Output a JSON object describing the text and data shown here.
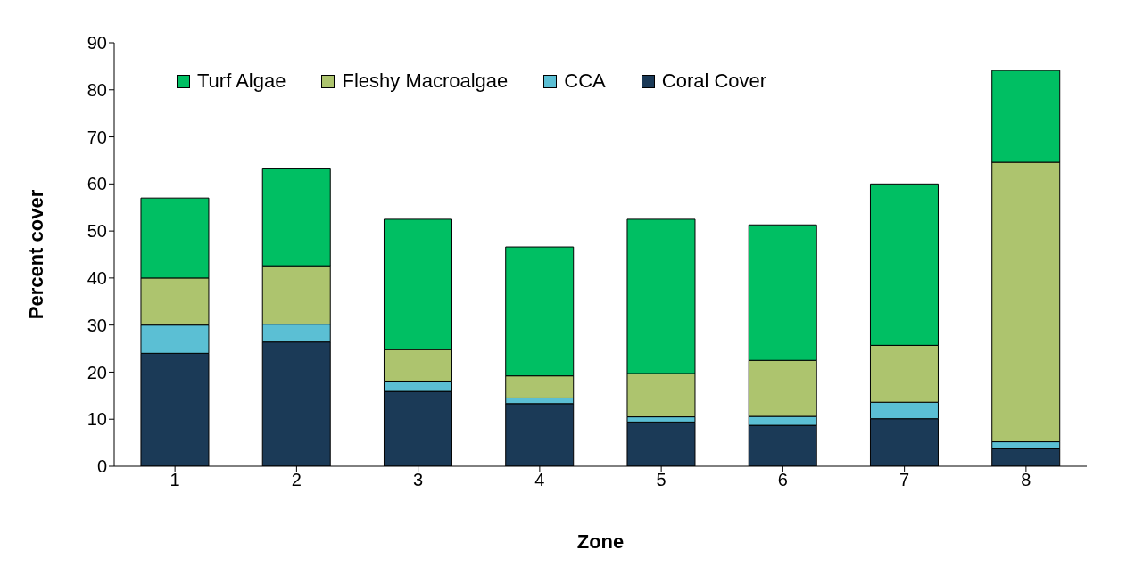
{
  "chart_data": {
    "type": "bar",
    "stacked": true,
    "xlabel": "Zone",
    "ylabel": "Percent  cover",
    "categories": [
      "1",
      "2",
      "3",
      "4",
      "5",
      "6",
      "7",
      "8"
    ],
    "series": [
      {
        "name": "Coral Cover",
        "color": "#1b3a57",
        "values": [
          24,
          26.4,
          15.9,
          13.3,
          9.4,
          8.7,
          10.1,
          3.7
        ]
      },
      {
        "name": "CCA",
        "color": "#5bbfd4",
        "values": [
          6,
          3.8,
          2.2,
          1.2,
          1.1,
          1.9,
          3.5,
          1.5
        ]
      },
      {
        "name": "Fleshy Macroalgae",
        "color": "#adc46e",
        "values": [
          10,
          12.4,
          6.7,
          4.7,
          9.2,
          11.9,
          12.1,
          59.4
        ]
      },
      {
        "name": "Turf Algae",
        "color": "#00bf63",
        "values": [
          17,
          20.6,
          27.7,
          27.4,
          32.8,
          28.8,
          34.3,
          19.5
        ]
      }
    ],
    "ylim": [
      0,
      90
    ],
    "yticks": [
      0,
      10,
      20,
      30,
      40,
      50,
      60,
      70,
      80,
      90
    ],
    "grid": false,
    "legend": "top left"
  }
}
